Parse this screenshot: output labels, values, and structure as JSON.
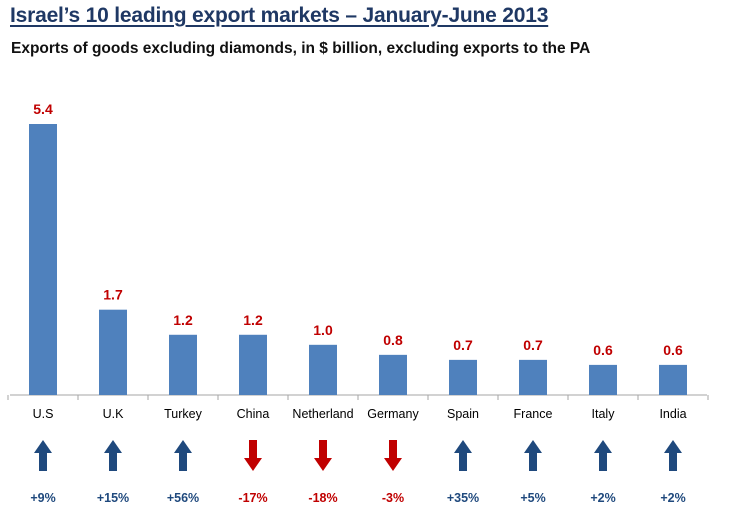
{
  "title": "Israel’s 10 leading export markets – January-June 2013",
  "subtitle": "Exports of goods excluding diamonds, in $ billion, excluding exports to the PA",
  "colors": {
    "bar": "#4f81bd",
    "value_label": "#c00000",
    "up": "#1f497d",
    "down": "#c00000",
    "axis": "#a6a6a6"
  },
  "chart_data": {
    "type": "bar",
    "categories": [
      "U.S",
      "U.K",
      "Turkey",
      "China",
      "Netherland",
      "Germany",
      "Spain",
      "France",
      "Italy",
      "India"
    ],
    "values": [
      5.4,
      1.7,
      1.2,
      1.2,
      1.0,
      0.8,
      0.7,
      0.7,
      0.6,
      0.6
    ],
    "value_labels": [
      "5.4",
      "1.7",
      "1.2",
      "1.2",
      "1.0",
      "0.8",
      "0.7",
      "0.7",
      "0.6",
      "0.6"
    ],
    "changes": [
      "+9%",
      "+15%",
      "+56%",
      "-17%",
      "-18%",
      "-3%",
      "+35%",
      "+5%",
      "+2%",
      "+2%"
    ],
    "directions": [
      "up",
      "up",
      "up",
      "down",
      "down",
      "down",
      "up",
      "up",
      "up",
      "up"
    ],
    "ylim": [
      0,
      5.4
    ],
    "grid": false,
    "legend": "none"
  }
}
